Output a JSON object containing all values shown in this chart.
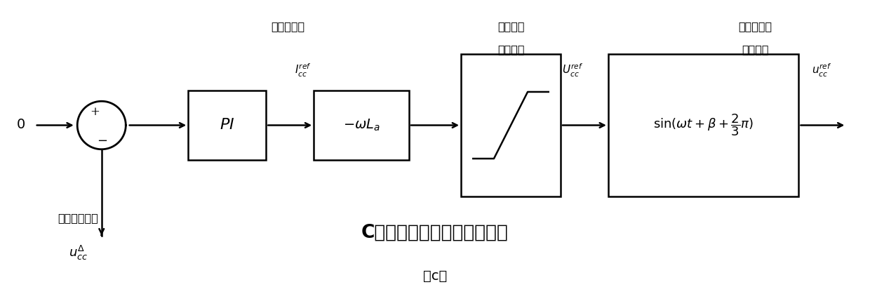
{
  "bg_color": "#ffffff",
  "fig_width": 12.4,
  "fig_height": 4.19,
  "title": "C相正序基频环流注入控制环",
  "subtitle": "（c）",
  "label_huanliu_ref": "环流参考值",
  "label_yadian_line1": "环流压降",
  "label_yadian_line2": "参考幅值",
  "label_fujia_line1": "附加调制电",
  "label_fujia_line2": "压参考值",
  "label_diankong": "电容电压偏差"
}
